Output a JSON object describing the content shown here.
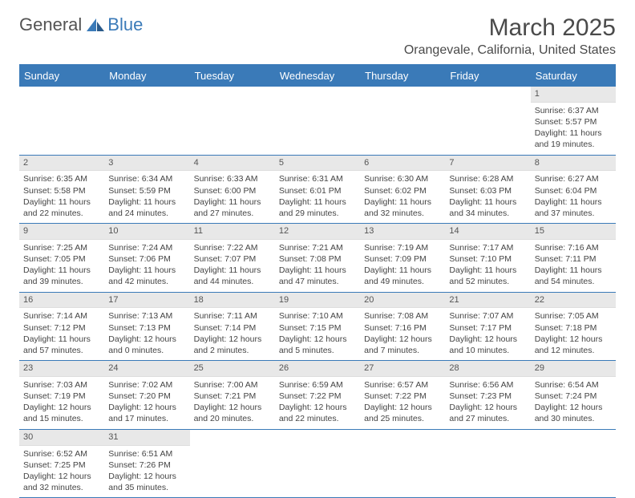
{
  "logo": {
    "text1": "General",
    "text2": "Blue"
  },
  "title": "March 2025",
  "location": "Orangevale, California, United States",
  "colors": {
    "accent": "#3a7ab8",
    "gray_bg": "#e8e8e8",
    "text": "#3a3a3a"
  },
  "day_labels": [
    "Sunday",
    "Monday",
    "Tuesday",
    "Wednesday",
    "Thursday",
    "Friday",
    "Saturday"
  ],
  "weeks": [
    [
      null,
      null,
      null,
      null,
      null,
      null,
      {
        "n": "1",
        "sr": "6:37 AM",
        "ss": "5:57 PM",
        "dl": "11 hours and 19 minutes."
      }
    ],
    [
      {
        "n": "2",
        "sr": "6:35 AM",
        "ss": "5:58 PM",
        "dl": "11 hours and 22 minutes."
      },
      {
        "n": "3",
        "sr": "6:34 AM",
        "ss": "5:59 PM",
        "dl": "11 hours and 24 minutes."
      },
      {
        "n": "4",
        "sr": "6:33 AM",
        "ss": "6:00 PM",
        "dl": "11 hours and 27 minutes."
      },
      {
        "n": "5",
        "sr": "6:31 AM",
        "ss": "6:01 PM",
        "dl": "11 hours and 29 minutes."
      },
      {
        "n": "6",
        "sr": "6:30 AM",
        "ss": "6:02 PM",
        "dl": "11 hours and 32 minutes."
      },
      {
        "n": "7",
        "sr": "6:28 AM",
        "ss": "6:03 PM",
        "dl": "11 hours and 34 minutes."
      },
      {
        "n": "8",
        "sr": "6:27 AM",
        "ss": "6:04 PM",
        "dl": "11 hours and 37 minutes."
      }
    ],
    [
      {
        "n": "9",
        "sr": "7:25 AM",
        "ss": "7:05 PM",
        "dl": "11 hours and 39 minutes."
      },
      {
        "n": "10",
        "sr": "7:24 AM",
        "ss": "7:06 PM",
        "dl": "11 hours and 42 minutes."
      },
      {
        "n": "11",
        "sr": "7:22 AM",
        "ss": "7:07 PM",
        "dl": "11 hours and 44 minutes."
      },
      {
        "n": "12",
        "sr": "7:21 AM",
        "ss": "7:08 PM",
        "dl": "11 hours and 47 minutes."
      },
      {
        "n": "13",
        "sr": "7:19 AM",
        "ss": "7:09 PM",
        "dl": "11 hours and 49 minutes."
      },
      {
        "n": "14",
        "sr": "7:17 AM",
        "ss": "7:10 PM",
        "dl": "11 hours and 52 minutes."
      },
      {
        "n": "15",
        "sr": "7:16 AM",
        "ss": "7:11 PM",
        "dl": "11 hours and 54 minutes."
      }
    ],
    [
      {
        "n": "16",
        "sr": "7:14 AM",
        "ss": "7:12 PM",
        "dl": "11 hours and 57 minutes."
      },
      {
        "n": "17",
        "sr": "7:13 AM",
        "ss": "7:13 PM",
        "dl": "12 hours and 0 minutes."
      },
      {
        "n": "18",
        "sr": "7:11 AM",
        "ss": "7:14 PM",
        "dl": "12 hours and 2 minutes."
      },
      {
        "n": "19",
        "sr": "7:10 AM",
        "ss": "7:15 PM",
        "dl": "12 hours and 5 minutes."
      },
      {
        "n": "20",
        "sr": "7:08 AM",
        "ss": "7:16 PM",
        "dl": "12 hours and 7 minutes."
      },
      {
        "n": "21",
        "sr": "7:07 AM",
        "ss": "7:17 PM",
        "dl": "12 hours and 10 minutes."
      },
      {
        "n": "22",
        "sr": "7:05 AM",
        "ss": "7:18 PM",
        "dl": "12 hours and 12 minutes."
      }
    ],
    [
      {
        "n": "23",
        "sr": "7:03 AM",
        "ss": "7:19 PM",
        "dl": "12 hours and 15 minutes."
      },
      {
        "n": "24",
        "sr": "7:02 AM",
        "ss": "7:20 PM",
        "dl": "12 hours and 17 minutes."
      },
      {
        "n": "25",
        "sr": "7:00 AM",
        "ss": "7:21 PM",
        "dl": "12 hours and 20 minutes."
      },
      {
        "n": "26",
        "sr": "6:59 AM",
        "ss": "7:22 PM",
        "dl": "12 hours and 22 minutes."
      },
      {
        "n": "27",
        "sr": "6:57 AM",
        "ss": "7:22 PM",
        "dl": "12 hours and 25 minutes."
      },
      {
        "n": "28",
        "sr": "6:56 AM",
        "ss": "7:23 PM",
        "dl": "12 hours and 27 minutes."
      },
      {
        "n": "29",
        "sr": "6:54 AM",
        "ss": "7:24 PM",
        "dl": "12 hours and 30 minutes."
      }
    ],
    [
      {
        "n": "30",
        "sr": "6:52 AM",
        "ss": "7:25 PM",
        "dl": "12 hours and 32 minutes."
      },
      {
        "n": "31",
        "sr": "6:51 AM",
        "ss": "7:26 PM",
        "dl": "12 hours and 35 minutes."
      },
      null,
      null,
      null,
      null,
      null
    ]
  ],
  "labels": {
    "sunrise": "Sunrise: ",
    "sunset": "Sunset: ",
    "daylight": "Daylight: "
  }
}
